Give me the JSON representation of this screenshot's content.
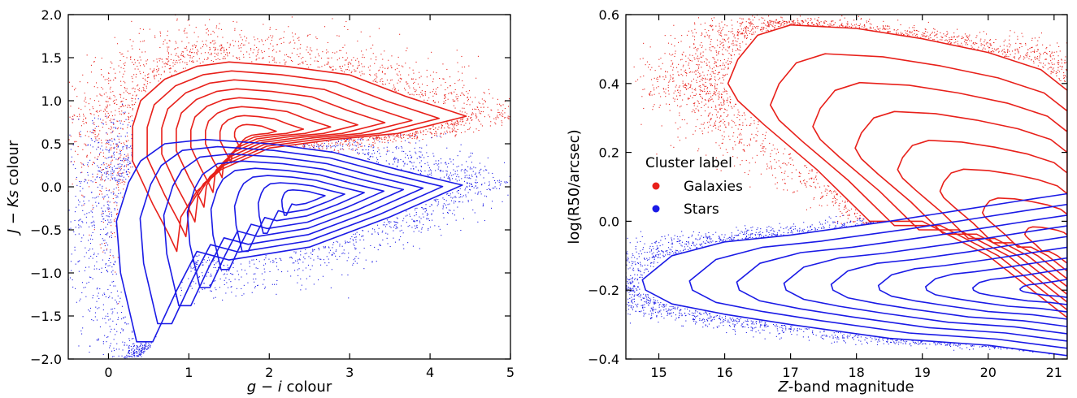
{
  "colors": {
    "galaxies": "#e8201a",
    "stars": "#1a1ae6"
  },
  "chart_data": [
    {
      "type": "scatter",
      "xlabel_parts": [
        "g",
        " − ",
        "i",
        " colour"
      ],
      "ylabel_parts": [
        "J",
        " − ",
        "Ks",
        " colour"
      ],
      "xlim": [
        -0.5,
        5
      ],
      "ylim": [
        -2.0,
        2.0
      ],
      "xticks": [
        "0",
        "1",
        "2",
        "3",
        "4",
        "5"
      ],
      "xtick_values": [
        0,
        1,
        2,
        3,
        4,
        5
      ],
      "yticks": [
        "−2.0",
        "−1.5",
        "−1.0",
        "−0.5",
        "0.0",
        "0.5",
        "1.0",
        "1.5",
        "2.0"
      ],
      "ytick_values": [
        -2.0,
        -1.5,
        -1.0,
        -0.5,
        0.0,
        0.5,
        1.0,
        1.5,
        2.0
      ],
      "series": [
        {
          "name": "Galaxies",
          "color": "#e8201a",
          "outer_contour": [
            [
              0.3,
              0.7
            ],
            [
              0.4,
              1.0
            ],
            [
              0.7,
              1.25
            ],
            [
              1.1,
              1.4
            ],
            [
              1.5,
              1.45
            ],
            [
              2.2,
              1.4
            ],
            [
              3.0,
              1.3
            ],
            [
              3.7,
              1.05
            ],
            [
              4.45,
              0.82
            ],
            [
              3.6,
              0.62
            ],
            [
              2.8,
              0.55
            ],
            [
              2.0,
              0.45
            ],
            [
              1.4,
              0.2
            ],
            [
              1.1,
              -0.05
            ],
            [
              0.9,
              -0.35
            ],
            [
              0.85,
              -0.75
            ],
            [
              0.75,
              -0.55
            ],
            [
              0.55,
              -0.2
            ],
            [
              0.3,
              0.3
            ]
          ],
          "peak": [
            1.75,
            0.62
          ],
          "levels": 8
        },
        {
          "name": "Stars",
          "color": "#1a1ae6",
          "outer_contour": [
            [
              0.4,
              0.3
            ],
            [
              0.7,
              0.5
            ],
            [
              1.2,
              0.55
            ],
            [
              2.0,
              0.5
            ],
            [
              2.8,
              0.4
            ],
            [
              3.6,
              0.2
            ],
            [
              4.4,
              0.02
            ],
            [
              3.5,
              -0.35
            ],
            [
              2.5,
              -0.7
            ],
            [
              1.5,
              -0.85
            ],
            [
              1.1,
              -0.75
            ],
            [
              0.85,
              -1.2
            ],
            [
              0.55,
              -1.8
            ],
            [
              0.35,
              -1.8
            ],
            [
              0.15,
              -1.0
            ],
            [
              0.1,
              -0.4
            ],
            [
              0.25,
              0.05
            ]
          ],
          "peak": [
            2.45,
            -0.12
          ],
          "levels": 8
        }
      ]
    },
    {
      "type": "scatter",
      "xlabel_parts": [
        "Z",
        "-band magnitude"
      ],
      "ylabel": "log(R50/arcsec)",
      "xlim": [
        14.5,
        21.2
      ],
      "ylim": [
        -0.4,
        0.6
      ],
      "xticks": [
        "15",
        "16",
        "17",
        "18",
        "19",
        "20",
        "21"
      ],
      "xtick_values": [
        15,
        16,
        17,
        18,
        19,
        20,
        21
      ],
      "yticks": [
        "−0.4",
        "−0.2",
        "0.0",
        "0.2",
        "0.4",
        "0.6"
      ],
      "ytick_values": [
        -0.4,
        -0.2,
        0.0,
        0.2,
        0.4,
        0.6
      ],
      "legend": {
        "title": "Cluster label",
        "placement": "center-left",
        "entries": [
          "Galaxies",
          "Stars"
        ]
      },
      "series": [
        {
          "name": "Galaxies",
          "color": "#e8201a",
          "outer_contour": [
            [
              16.05,
              0.4
            ],
            [
              16.2,
              0.47
            ],
            [
              16.5,
              0.54
            ],
            [
              17.0,
              0.57
            ],
            [
              18.0,
              0.56
            ],
            [
              19.0,
              0.53
            ],
            [
              20.0,
              0.49
            ],
            [
              20.8,
              0.44
            ],
            [
              21.2,
              0.38
            ],
            [
              21.2,
              -0.28
            ],
            [
              20.0,
              -0.1
            ],
            [
              19.0,
              0.0
            ],
            [
              18.2,
              0.0
            ],
            [
              17.4,
              0.15
            ],
            [
              16.6,
              0.28
            ],
            [
              16.2,
              0.35
            ]
          ],
          "peak": [
            21.2,
            -0.1
          ],
          "levels": 8
        },
        {
          "name": "Stars",
          "color": "#1a1ae6",
          "outer_contour": [
            [
              14.75,
              -0.17
            ],
            [
              15.2,
              -0.1
            ],
            [
              16.0,
              -0.06
            ],
            [
              17.0,
              -0.04
            ],
            [
              18.5,
              0.0
            ],
            [
              19.5,
              0.03
            ],
            [
              20.5,
              0.06
            ],
            [
              21.2,
              0.08
            ],
            [
              21.2,
              -0.39
            ],
            [
              20.0,
              -0.36
            ],
            [
              18.5,
              -0.34
            ],
            [
              17.0,
              -0.3
            ],
            [
              16.0,
              -0.27
            ],
            [
              15.2,
              -0.24
            ],
            [
              14.8,
              -0.2
            ]
          ],
          "peak": [
            21.2,
            -0.2
          ],
          "levels": 9
        }
      ]
    }
  ]
}
